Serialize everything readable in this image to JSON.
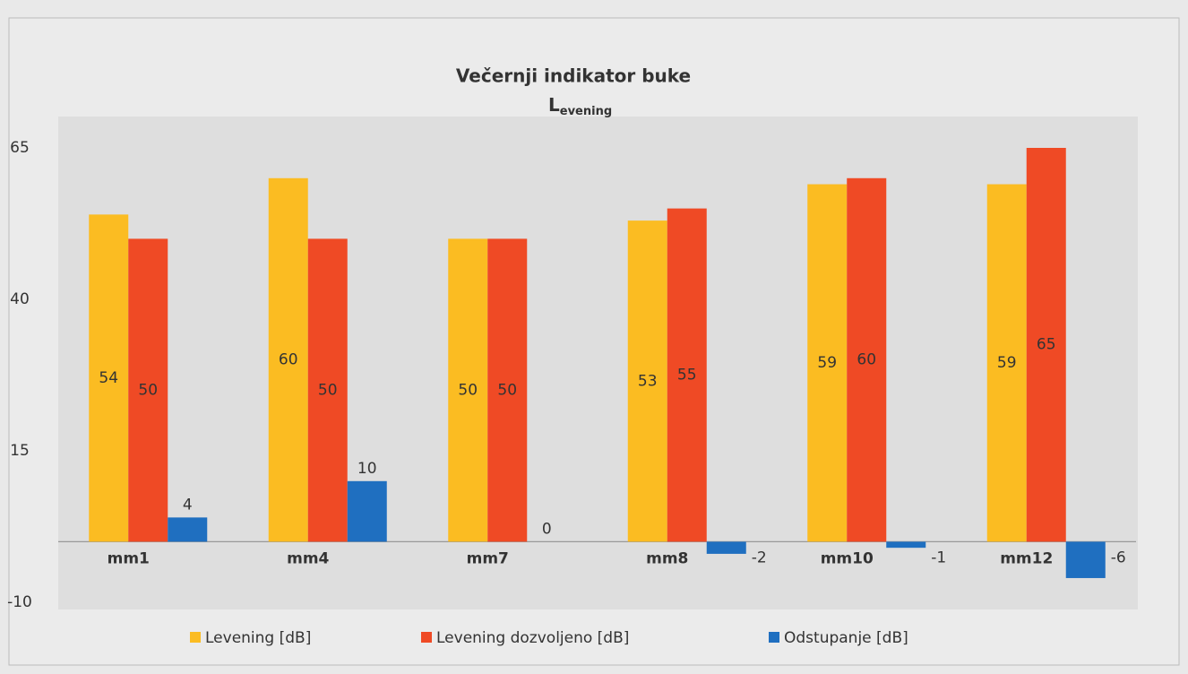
{
  "chart_data": {
    "type": "bar",
    "title": "Večernji indikator buke",
    "subtitle": "L",
    "subtitle_subscript": "evening",
    "categories": [
      "mm1",
      "mm4",
      "mm7",
      "mm8",
      "mm10",
      "mm12"
    ],
    "series": [
      {
        "name": "Levening [dB]",
        "color": "#fbbc22",
        "values": [
          54,
          60,
          50,
          53,
          59,
          59
        ]
      },
      {
        "name": "Levening dozvoljeno [dB]",
        "color": "#ef4a25",
        "values": [
          50,
          50,
          50,
          55,
          60,
          65
        ]
      },
      {
        "name": "Odstupanje [dB]",
        "color": "#1f6fc0",
        "values": [
          4,
          10,
          0,
          -2,
          -1,
          -6
        ]
      }
    ],
    "ylim": [
      -10,
      65
    ],
    "yticks": [
      -10,
      15,
      40,
      65
    ],
    "grid": false,
    "legend": "bottom"
  }
}
